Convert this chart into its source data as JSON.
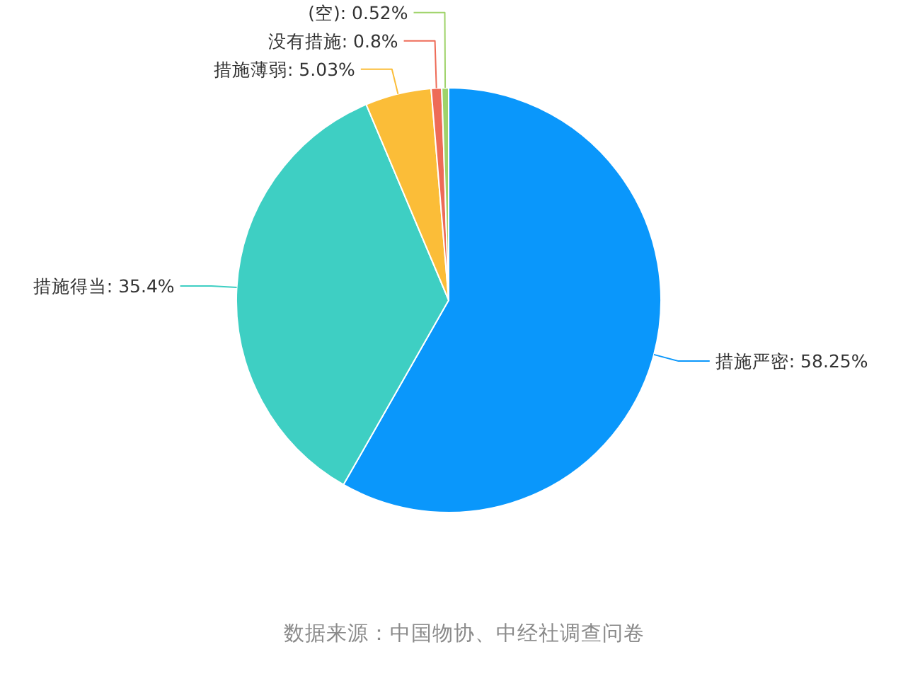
{
  "chart_data": {
    "type": "pie",
    "categories": [
      "措施严密",
      "措施得当",
      "措施薄弱",
      "没有措施",
      "(空)"
    ],
    "values": [
      58.25,
      35.4,
      5.03,
      0.8,
      0.52
    ],
    "colors": [
      "#0a97fb",
      "#3ecfc3",
      "#fbbd38",
      "#ee6b57",
      "#9fd36a"
    ],
    "value_labels": [
      ": 58.25%",
      ": 35.4%",
      ": 5.03%",
      ": 0.8%",
      ": 0.52%"
    ],
    "annotations": [
      "数据来源：中国物协、中经社调查问卷"
    ]
  }
}
